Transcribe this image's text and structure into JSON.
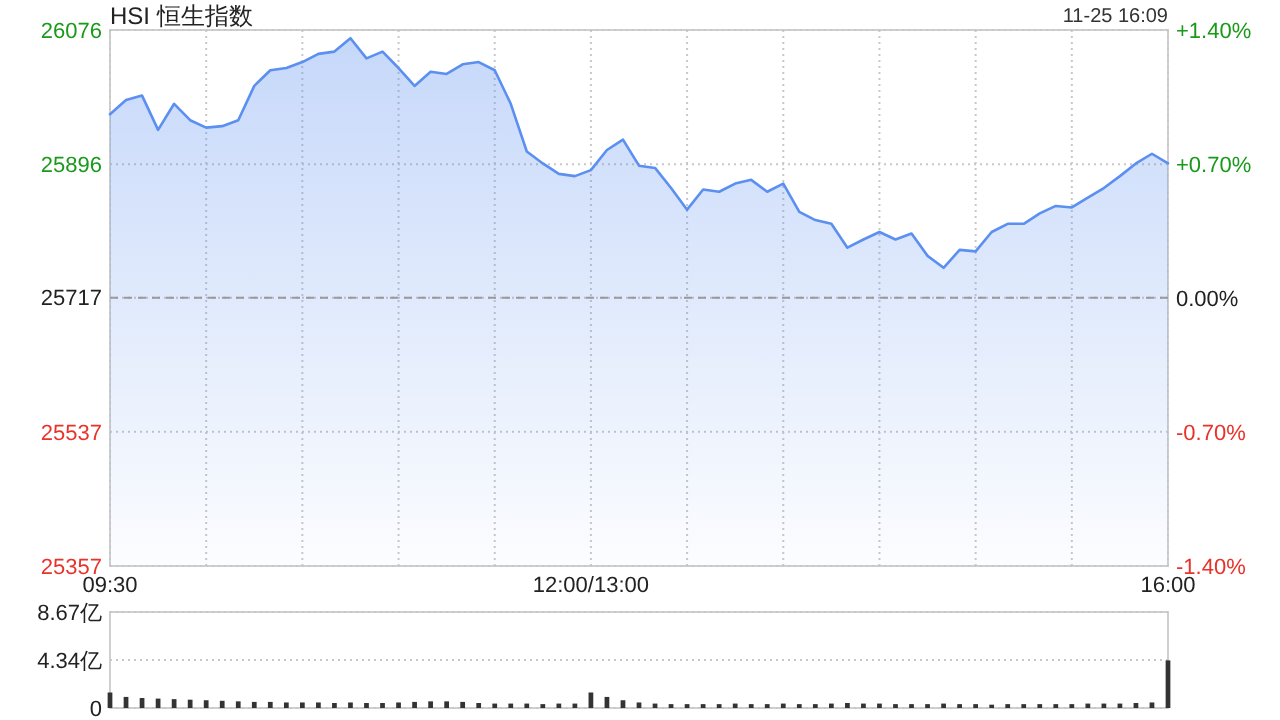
{
  "chart_data": [
    {
      "type": "area",
      "title": "HSI 恒生指数",
      "annotations": [
        "11-25 16:09"
      ],
      "categories": [
        "09:30",
        null,
        null,
        null,
        null,
        null,
        null,
        null,
        null,
        null,
        null,
        null,
        null,
        null,
        null,
        null,
        null,
        null,
        null,
        null,
        null,
        null,
        null,
        null,
        null,
        null,
        null,
        null,
        null,
        null,
        "12:00/13:00",
        null,
        null,
        null,
        null,
        null,
        null,
        null,
        null,
        null,
        null,
        null,
        null,
        null,
        null,
        null,
        null,
        null,
        null,
        null,
        null,
        null,
        null,
        null,
        null,
        null,
        null,
        null,
        null,
        null,
        null,
        null,
        null,
        null,
        null,
        null,
        "16:00"
      ],
      "series": [
        {
          "color": "#5b8ff0",
          "values": [
            25963,
            25982,
            25988,
            25942,
            25977,
            25955,
            25945,
            25947,
            25955,
            26001,
            26022,
            26025,
            26033,
            26044,
            26047,
            26065,
            26038,
            26047,
            26025,
            26001,
            26020,
            26017,
            26030,
            26033,
            26022,
            25977,
            25913,
            25897,
            25883,
            25880,
            25888,
            25915,
            25929,
            25894,
            25891,
            25864,
            25835,
            25862,
            25859,
            25870,
            25875,
            25859,
            25870,
            25832,
            25821,
            25816,
            25784,
            25795,
            25805,
            25795,
            25803,
            25773,
            25757,
            25781,
            25779,
            25805,
            25816,
            25816,
            25830,
            25840,
            25838,
            25851,
            25864,
            25880,
            25897,
            25910,
            25897
          ]
        }
      ],
      "ylim": [
        25357,
        26076
      ],
      "yticks": [
        25357,
        25537,
        25717,
        25896,
        26076
      ],
      "y2lim": [
        -1.4,
        1.4
      ],
      "y2ticks": [
        {
          "value": -1.4,
          "label": "-1.40%"
        },
        {
          "value": -0.7,
          "label": "-0.70%"
        },
        {
          "value": 0,
          "label": "0.00%"
        },
        {
          "value": 0.7,
          "label": "+0.70%"
        },
        {
          "value": 1.4,
          "label": "+1.40%"
        }
      ],
      "ref_lines": [
        {
          "axis": "y",
          "value": 25717,
          "color": "#999999",
          "line_style": "dashed"
        }
      ],
      "grid": true
    },
    {
      "type": "bar",
      "categories": [
        null,
        null,
        null,
        null,
        null,
        null,
        null,
        null,
        null,
        null,
        null,
        null,
        null,
        null,
        null,
        null,
        null,
        null,
        null,
        null,
        null,
        null,
        null,
        null,
        null,
        null,
        null,
        null,
        null,
        null,
        null,
        null,
        null,
        null,
        null,
        null,
        null,
        null,
        null,
        null,
        null,
        null,
        null,
        null,
        null,
        null,
        null,
        null,
        null,
        null,
        null,
        null,
        null,
        null,
        null,
        null,
        null,
        null,
        null,
        null,
        null,
        null,
        null,
        null,
        null,
        null,
        null
      ],
      "values": [
        1.4,
        1.0,
        0.9,
        0.85,
        0.8,
        0.75,
        0.7,
        0.65,
        0.6,
        0.55,
        0.55,
        0.5,
        0.5,
        0.5,
        0.45,
        0.5,
        0.45,
        0.45,
        0.5,
        0.55,
        0.6,
        0.6,
        0.55,
        0.45,
        0.4,
        0.4,
        0.4,
        0.35,
        0.4,
        0.4,
        1.4,
        1.0,
        0.7,
        0.5,
        0.4,
        0.35,
        0.35,
        0.35,
        0.35,
        0.4,
        0.35,
        0.35,
        0.4,
        0.35,
        0.35,
        0.4,
        0.45,
        0.4,
        0.4,
        0.35,
        0.35,
        0.35,
        0.4,
        0.35,
        0.35,
        0.3,
        0.35,
        0.35,
        0.35,
        0.35,
        0.35,
        0.4,
        0.4,
        0.4,
        0.45,
        0.5,
        4.3
      ],
      "color": "#333333",
      "ylim": [
        0,
        8.67
      ],
      "yticks": [
        0,
        {
          "value": 4.34,
          "label": "4.34亿"
        },
        {
          "value": 8.67,
          "label": "8.67亿"
        }
      ],
      "grid": "y",
      "tick_labels": "y"
    }
  ]
}
